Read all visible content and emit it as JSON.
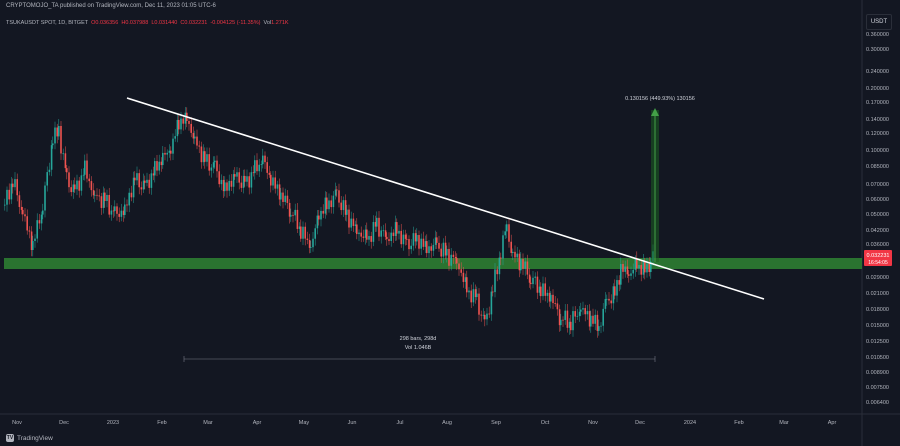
{
  "header": {
    "published": "CRYPTOMOJO_TA published on TradingView.com, Dec 11, 2023 01:05 UTC-6"
  },
  "legend": {
    "symbol": "TSUKAUSDT SPOT, 1D, BITGET",
    "open": "O0.036356",
    "high": "H0.037988",
    "low": "L0.031440",
    "close": "C0.032231",
    "change": "-0.004125 (-11.35%)",
    "vol_label": "Vol",
    "vol_value": "1.271K"
  },
  "price_axis": {
    "currency": "USDT",
    "labels": [
      "0.360000",
      "0.300000",
      "0.240000",
      "0.200000",
      "0.170000",
      "0.140000",
      "0.120000",
      "0.100000",
      "0.085000",
      "0.070000",
      "0.060000",
      "0.050000",
      "0.042000",
      "0.036000",
      "0.029000",
      "0.021000",
      "0.018000",
      "0.015000",
      "0.012500",
      "0.010500",
      "0.008900",
      "0.007500",
      "0.006400"
    ],
    "current_price": "0.032231",
    "countdown": "16:54:05",
    "current_color": "#f23645"
  },
  "time_axis": {
    "labels": [
      "Nov",
      "Dec",
      "2023",
      "Feb",
      "Mar",
      "Apr",
      "May",
      "Jun",
      "Jul",
      "Aug",
      "Sep",
      "Oct",
      "Nov",
      "Dec",
      "2024",
      "Feb",
      "Mar",
      "Apr"
    ]
  },
  "annotations": {
    "target": "0.130156 (449.93%) 130156",
    "range_bars": "298 bars, 298d",
    "range_vol": "Vol 1.046B"
  },
  "colors": {
    "up": "#26a69a",
    "down": "#ef5350",
    "support_zone": "#2e7d32",
    "trendline": "#ffffff",
    "target_arrow": "#2e7d32"
  },
  "footer": {
    "brand": "TradingView",
    "logo_icon": "tradingview-logo-icon"
  }
}
